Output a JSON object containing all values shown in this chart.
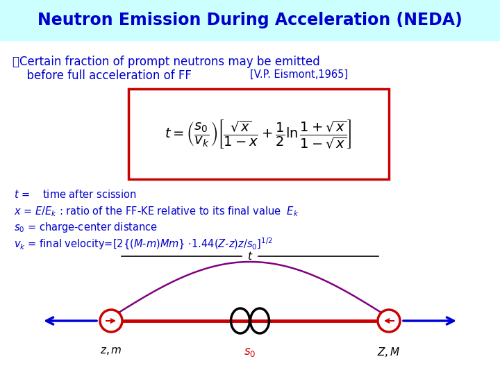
{
  "title": "Neutron Emission During Acceleration (NEDA)",
  "title_color": "#0000CC",
  "title_bg_color": "#CCFFFF",
  "bg_color": "#FFFFFF",
  "bullet1": "・Certain fraction of prompt neutrons may be emitted",
  "bullet2": "  before full acceleration of FF",
  "ref_text": "[V.P. Eismont,1965]",
  "text_color": "#0000CC",
  "formula_box_color": "#CC0000",
  "arrow_color": "#0000DD",
  "line_color": "#CC0000",
  "circle_color": "#CC0000",
  "infinity_color": "#000000",
  "arc_color": "#800080",
  "s0_color": "#CC0000",
  "label_color": "#000000",
  "t_label_color": "#000000"
}
